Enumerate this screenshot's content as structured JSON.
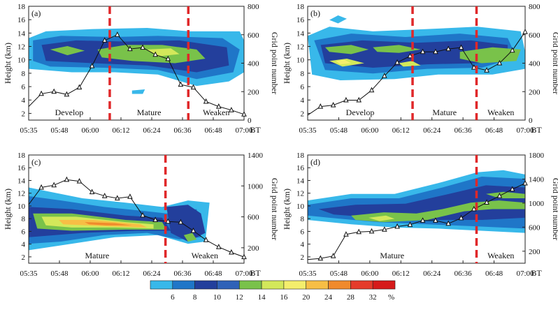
{
  "figure": {
    "colorbar": {
      "levels": [
        "6",
        "8",
        "10",
        "12",
        "14",
        "16",
        "20",
        "24",
        "28",
        "32"
      ],
      "unit": "%",
      "colors": [
        "#38b8ea",
        "#1f76c8",
        "#233f9c",
        "#2f62b8",
        "#79c24a",
        "#d3e85a",
        "#f4ee6c",
        "#f7be45",
        "#f08a2c",
        "#e53b2b",
        "#d61a1a"
      ]
    },
    "palette": {
      "c6": "#38b8ea",
      "c8": "#1f76c8",
      "c10": "#233f9c",
      "c12": "#2f62b8",
      "c14": "#79c24a",
      "c16": "#d3e85a",
      "c20": "#f4ee6c",
      "c24": "#f7be45",
      "c28": "#f08a2c",
      "stage_line": "#e0282a"
    }
  },
  "chart_data": [
    {
      "type": "contour+line",
      "panel_label": "(a)",
      "x_tick_labels": [
        "05:35",
        "05:48",
        "06:00",
        "06:12",
        "06:24",
        "06:36",
        "06:48",
        "07:00"
      ],
      "x_unit_label": "BT",
      "ylabel_left": "Height (km)",
      "ylabel_right": "Grid point number",
      "ylim_left": [
        1,
        18
      ],
      "y_ticks_left": [
        "2",
        "4",
        "6",
        "8",
        "10",
        "12",
        "14",
        "16",
        "18"
      ],
      "ylim_right": [
        0,
        800
      ],
      "y_ticks_right": [
        "0",
        "200",
        "400",
        "600",
        "800"
      ],
      "stage_boundaries_minutes": [
        32,
        63
      ],
      "stages": [
        "Develop",
        "Mature",
        "Weaken"
      ],
      "grid_point_series": {
        "minutes": [
          0,
          5,
          10,
          15,
          20,
          25,
          30,
          35,
          40,
          45,
          50,
          55,
          60,
          65,
          70,
          75,
          80,
          85
        ],
        "values": [
          95,
          185,
          200,
          180,
          230,
          380,
          560,
          600,
          500,
          510,
          460,
          430,
          250,
          230,
          130,
          95,
          70,
          40
        ]
      }
    },
    {
      "type": "contour+line",
      "panel_label": "(b)",
      "x_tick_labels": [
        "05:35",
        "05:48",
        "06:00",
        "06:12",
        "06:24",
        "06:36",
        "06:48",
        "07:00"
      ],
      "x_unit_label": "BT",
      "ylabel_left": "Height (km)",
      "ylabel_right": "Grid point number",
      "ylim_left": [
        1,
        18
      ],
      "y_ticks_left": [
        "2",
        "4",
        "6",
        "8",
        "10",
        "12",
        "14",
        "16",
        "18"
      ],
      "ylim_right": [
        0,
        800
      ],
      "y_ticks_right": [
        "0",
        "200",
        "400",
        "600",
        "800"
      ],
      "stage_boundaries_minutes": [
        41,
        66
      ],
      "stages": [
        "Develop",
        "Mature",
        "Weaken"
      ],
      "grid_point_series": {
        "minutes": [
          0,
          5,
          10,
          15,
          20,
          25,
          30,
          35,
          40,
          45,
          50,
          55,
          60,
          65,
          70,
          75,
          80,
          85
        ],
        "values": [
          35,
          95,
          105,
          140,
          140,
          210,
          310,
          405,
          450,
          480,
          480,
          500,
          510,
          370,
          350,
          400,
          490,
          620
        ]
      }
    },
    {
      "type": "contour+line",
      "panel_label": "(c)",
      "x_tick_labels": [
        "05:35",
        "05:48",
        "06:00",
        "06:12",
        "06:24",
        "06:36",
        "06:48",
        "07:00"
      ],
      "x_unit_label": "BT",
      "ylabel_left": "Height (km)",
      "ylabel_right": "Grid point number",
      "ylim_left": [
        1,
        18
      ],
      "y_ticks_left": [
        "2",
        "4",
        "6",
        "8",
        "10",
        "12",
        "14",
        "16",
        "18"
      ],
      "ylim_right": [
        0,
        1400
      ],
      "y_ticks_right": [
        "200",
        "600",
        "1000",
        "1400"
      ],
      "stage_boundaries_minutes": [
        54
      ],
      "stages": [
        "Mature",
        "Weaken"
      ],
      "grid_point_series": {
        "minutes": [
          0,
          5,
          10,
          15,
          20,
          25,
          30,
          35,
          40,
          45,
          50,
          55,
          60,
          65,
          70,
          75,
          80,
          85
        ],
        "values": [
          760,
          980,
          1010,
          1080,
          1060,
          920,
          870,
          840,
          860,
          620,
          560,
          540,
          530,
          420,
          300,
          210,
          140,
          80
        ]
      }
    },
    {
      "type": "contour+line",
      "panel_label": "(d)",
      "x_tick_labels": [
        "05:35",
        "05:48",
        "06:00",
        "06:12",
        "06:24",
        "06:36",
        "06:48",
        "07:00"
      ],
      "x_unit_label": "BT",
      "ylabel_left": "Height (km)",
      "ylabel_right": "Grid point number",
      "ylim_left": [
        1,
        18
      ],
      "y_ticks_left": [
        "2",
        "4",
        "6",
        "8",
        "10",
        "12",
        "14",
        "16",
        "18"
      ],
      "ylim_right": [
        0,
        1800
      ],
      "y_ticks_right": [
        "200",
        "600",
        "1000",
        "1400",
        "1800"
      ],
      "stage_boundaries_minutes": [
        66
      ],
      "stages": [
        "Mature",
        "Weaken"
      ],
      "grid_point_series": {
        "minutes": [
          0,
          5,
          10,
          15,
          20,
          25,
          30,
          35,
          40,
          45,
          50,
          55,
          60,
          65,
          70,
          75,
          80,
          85
        ],
        "values": [
          60,
          80,
          120,
          480,
          520,
          530,
          560,
          610,
          640,
          710,
          710,
          660,
          750,
          900,
          1010,
          1120,
          1230,
          1330
        ]
      }
    }
  ]
}
